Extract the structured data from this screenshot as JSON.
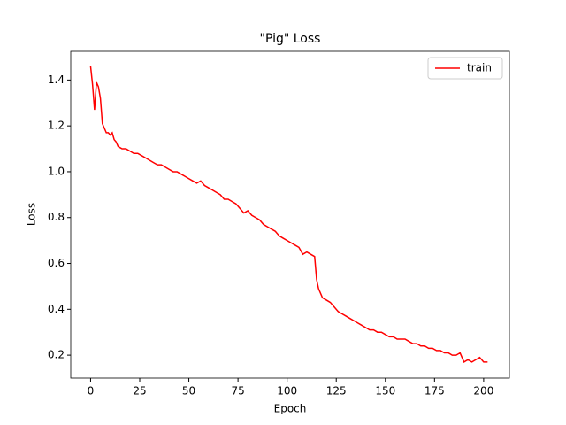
{
  "chart_data": {
    "type": "line",
    "title": "\"Pig\" Loss",
    "x_label": "Epoch",
    "y_label": "Loss",
    "x": [
      0,
      1,
      2,
      3,
      4,
      5,
      6,
      7,
      8,
      9,
      10,
      11,
      12,
      13,
      14,
      16,
      18,
      20,
      22,
      24,
      26,
      28,
      30,
      32,
      34,
      36,
      38,
      40,
      42,
      44,
      46,
      48,
      50,
      52,
      54,
      56,
      58,
      60,
      62,
      64,
      66,
      68,
      70,
      72,
      74,
      76,
      78,
      80,
      82,
      84,
      86,
      88,
      90,
      92,
      94,
      96,
      98,
      100,
      102,
      104,
      106,
      108,
      110,
      112,
      114,
      115,
      116,
      118,
      120,
      122,
      124,
      126,
      128,
      130,
      132,
      134,
      136,
      138,
      140,
      142,
      144,
      146,
      148,
      150,
      152,
      154,
      156,
      158,
      160,
      162,
      164,
      166,
      168,
      170,
      172,
      174,
      176,
      178,
      180,
      182,
      184,
      186,
      188,
      190,
      192,
      194,
      196,
      198,
      200,
      202
    ],
    "series": [
      {
        "name": "train",
        "color": "#ff0000",
        "values": [
          1.46,
          1.38,
          1.27,
          1.39,
          1.37,
          1.32,
          1.21,
          1.19,
          1.17,
          1.17,
          1.16,
          1.17,
          1.14,
          1.13,
          1.11,
          1.1,
          1.1,
          1.09,
          1.08,
          1.08,
          1.07,
          1.06,
          1.05,
          1.04,
          1.03,
          1.03,
          1.02,
          1.01,
          1.0,
          1.0,
          0.99,
          0.98,
          0.97,
          0.96,
          0.95,
          0.96,
          0.94,
          0.93,
          0.92,
          0.91,
          0.9,
          0.88,
          0.88,
          0.87,
          0.86,
          0.84,
          0.82,
          0.83,
          0.81,
          0.8,
          0.79,
          0.77,
          0.76,
          0.75,
          0.74,
          0.72,
          0.71,
          0.7,
          0.69,
          0.68,
          0.67,
          0.64,
          0.65,
          0.64,
          0.63,
          0.53,
          0.49,
          0.45,
          0.44,
          0.43,
          0.41,
          0.39,
          0.38,
          0.37,
          0.36,
          0.35,
          0.34,
          0.33,
          0.32,
          0.31,
          0.31,
          0.3,
          0.3,
          0.29,
          0.28,
          0.28,
          0.27,
          0.27,
          0.27,
          0.26,
          0.25,
          0.25,
          0.24,
          0.24,
          0.23,
          0.23,
          0.22,
          0.22,
          0.21,
          0.21,
          0.2,
          0.2,
          0.21,
          0.17,
          0.18,
          0.17,
          0.18,
          0.19,
          0.17,
          0.17
        ]
      }
    ],
    "xlim": [
      -10.1,
      213.1
    ],
    "ylim": [
      0.1,
      1.525
    ],
    "xticks": [
      0,
      25,
      50,
      75,
      100,
      125,
      150,
      175,
      200
    ],
    "yticks": [
      0.2,
      0.4,
      0.6,
      0.8,
      {
        "value": 1,
        "label": "1.0"
      },
      1.2,
      1.4
    ],
    "legend": "upper right"
  }
}
